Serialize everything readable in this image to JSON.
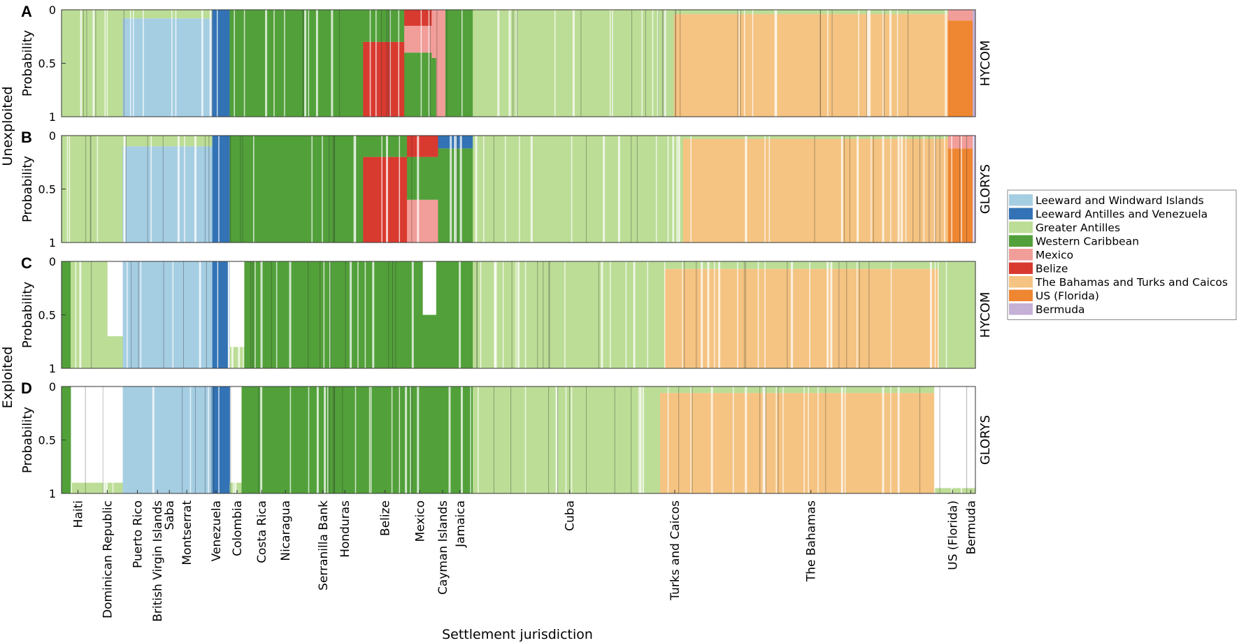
{
  "chart_data": {
    "type": "bar",
    "subtype": "stacked-probability-strips",
    "xlabel": "Settlement jurisdiction",
    "ylabel": "Probability",
    "ylim": [
      0,
      1
    ],
    "yticks": [
      "0",
      "0.5",
      "1"
    ],
    "groups": [
      {
        "label": "Unexploited",
        "panels": [
          "A",
          "B"
        ]
      },
      {
        "label": "Exploited",
        "panels": [
          "C",
          "D"
        ]
      }
    ],
    "panels": [
      {
        "letter": "A",
        "model": "HYCOM",
        "group": "Unexploited"
      },
      {
        "letter": "B",
        "model": "GLORYS",
        "group": "Unexploited"
      },
      {
        "letter": "C",
        "model": "HYCOM",
        "group": "Exploited"
      },
      {
        "letter": "D",
        "model": "GLORYS",
        "group": "Exploited"
      }
    ],
    "legend": [
      {
        "name": "Leeward and Windward Islands",
        "color": "#a6cee3"
      },
      {
        "name": "Leeward Antilles and Venezuela",
        "color": "#3373b5"
      },
      {
        "name": "Greater Antilles",
        "color": "#bcdd96"
      },
      {
        "name": "Western Caribbean",
        "color": "#52a03a"
      },
      {
        "name": "Mexico",
        "color": "#f19d99"
      },
      {
        "name": "Belize",
        "color": "#d93a30"
      },
      {
        "name": "The Bahamas and Turks and Caicos",
        "color": "#f5c382"
      },
      {
        "name": "US (Florida)",
        "color": "#ee8632"
      },
      {
        "name": "Bermuda",
        "color": "#c5b0d6"
      }
    ],
    "jurisdictions": [
      {
        "label": "Haiti",
        "pos": 0.018
      },
      {
        "label": "Dominican Republic",
        "pos": 0.05
      },
      {
        "label": "Puerto Rico",
        "pos": 0.083
      },
      {
        "label": "British Virgin Islands",
        "pos": 0.105
      },
      {
        "label": "Saba",
        "pos": 0.118
      },
      {
        "label": "Montserrat",
        "pos": 0.137
      },
      {
        "label": "Venezuela",
        "pos": 0.169
      },
      {
        "label": "Colombia",
        "pos": 0.192
      },
      {
        "label": "Costa Rica",
        "pos": 0.219
      },
      {
        "label": "Nicaragua",
        "pos": 0.245
      },
      {
        "label": "Serranilla Bank",
        "pos": 0.286
      },
      {
        "label": "Honduras",
        "pos": 0.31
      },
      {
        "label": "Belize",
        "pos": 0.354
      },
      {
        "label": "Mexico",
        "pos": 0.392
      },
      {
        "label": "Cayman Islands",
        "pos": 0.417
      },
      {
        "label": "Jamaica",
        "pos": 0.436
      },
      {
        "label": "Cuba",
        "pos": 0.556
      },
      {
        "label": "Turks and Caicos",
        "pos": 0.671
      },
      {
        "label": "The Bahamas",
        "pos": 0.82
      },
      {
        "label": "US (Florida)",
        "pos": 0.975
      },
      {
        "label": "Bermuda",
        "pos": 0.995
      }
    ],
    "segments": {
      "A": [
        {
          "start": 0.0,
          "end": 0.067,
          "parts": [
            [
              "Greater Antilles",
              1
            ]
          ]
        },
        {
          "start": 0.067,
          "end": 0.165,
          "parts": [
            [
              "Leeward and Windward Islands",
              0.92
            ],
            [
              "Greater Antilles",
              0.08
            ]
          ]
        },
        {
          "start": 0.165,
          "end": 0.184,
          "parts": [
            [
              "Leeward Antilles and Venezuela",
              1
            ]
          ]
        },
        {
          "start": 0.184,
          "end": 0.33,
          "parts": [
            [
              "Western Caribbean",
              1
            ]
          ]
        },
        {
          "start": 0.33,
          "end": 0.375,
          "parts": [
            [
              "Belize",
              0.7
            ],
            [
              "Western Caribbean",
              0.3
            ]
          ]
        },
        {
          "start": 0.375,
          "end": 0.405,
          "parts": [
            [
              "Western Caribbean",
              0.6
            ],
            [
              "Mexico",
              0.25
            ],
            [
              "Belize",
              0.15
            ]
          ]
        },
        {
          "start": 0.405,
          "end": 0.41,
          "parts": [
            [
              "Western Caribbean",
              0.55
            ],
            [
              "Mexico",
              0.45
            ]
          ]
        },
        {
          "start": 0.41,
          "end": 0.42,
          "parts": [
            [
              "Mexico",
              1
            ]
          ]
        },
        {
          "start": 0.42,
          "end": 0.45,
          "parts": [
            [
              "Western Caribbean",
              1
            ]
          ]
        },
        {
          "start": 0.45,
          "end": 0.67,
          "parts": [
            [
              "Greater Antilles",
              1
            ]
          ]
        },
        {
          "start": 0.67,
          "end": 0.97,
          "parts": [
            [
              "The Bahamas and Turks and Caicos",
              0.96
            ],
            [
              "Greater Antilles",
              0.04
            ]
          ]
        },
        {
          "start": 0.97,
          "end": 0.997,
          "parts": [
            [
              "US (Florida)",
              0.9
            ],
            [
              "Mexico",
              0.1
            ]
          ]
        },
        {
          "start": 0.997,
          "end": 1.0,
          "parts": [
            [
              "Bermuda",
              1
            ]
          ]
        }
      ],
      "B": [
        {
          "start": 0.0,
          "end": 0.067,
          "parts": [
            [
              "Greater Antilles",
              1
            ]
          ]
        },
        {
          "start": 0.067,
          "end": 0.165,
          "parts": [
            [
              "Leeward and Windward Islands",
              0.9
            ],
            [
              "Greater Antilles",
              0.1
            ]
          ]
        },
        {
          "start": 0.165,
          "end": 0.184,
          "parts": [
            [
              "Leeward Antilles and Venezuela",
              1
            ]
          ]
        },
        {
          "start": 0.184,
          "end": 0.33,
          "parts": [
            [
              "Western Caribbean",
              1
            ]
          ]
        },
        {
          "start": 0.33,
          "end": 0.378,
          "parts": [
            [
              "Belize",
              0.8
            ],
            [
              "Western Caribbean",
              0.2
            ]
          ]
        },
        {
          "start": 0.378,
          "end": 0.412,
          "parts": [
            [
              "Mexico",
              0.4
            ],
            [
              "Western Caribbean",
              0.4
            ],
            [
              "Belize",
              0.2
            ]
          ]
        },
        {
          "start": 0.412,
          "end": 0.45,
          "parts": [
            [
              "Western Caribbean",
              0.88
            ],
            [
              "Leeward Antilles and Venezuela",
              0.12
            ]
          ]
        },
        {
          "start": 0.45,
          "end": 0.68,
          "parts": [
            [
              "Greater Antilles",
              1
            ]
          ]
        },
        {
          "start": 0.68,
          "end": 0.97,
          "parts": [
            [
              "The Bahamas and Turks and Caicos",
              0.97
            ],
            [
              "Greater Antilles",
              0.03
            ]
          ]
        },
        {
          "start": 0.97,
          "end": 0.997,
          "parts": [
            [
              "US (Florida)",
              0.88
            ],
            [
              "Mexico",
              0.12
            ]
          ]
        },
        {
          "start": 0.997,
          "end": 1.0,
          "parts": [
            [
              "Bermuda",
              1
            ]
          ]
        }
      ],
      "C": [
        {
          "start": 0.0,
          "end": 0.01,
          "parts": [
            [
              "Western Caribbean",
              1
            ]
          ]
        },
        {
          "start": 0.01,
          "end": 0.05,
          "parts": [
            [
              "Greater Antilles",
              1
            ]
          ]
        },
        {
          "start": 0.05,
          "end": 0.067,
          "parts": [
            [
              "Greater Antilles",
              0.3
            ]
          ]
        },
        {
          "start": 0.067,
          "end": 0.165,
          "parts": [
            [
              "Leeward and Windward Islands",
              1
            ]
          ]
        },
        {
          "start": 0.165,
          "end": 0.184,
          "parts": [
            [
              "Leeward Antilles and Venezuela",
              1
            ]
          ]
        },
        {
          "start": 0.184,
          "end": 0.2,
          "parts": [
            [
              "Greater Antilles",
              0.2
            ]
          ]
        },
        {
          "start": 0.2,
          "end": 0.395,
          "parts": [
            [
              "Western Caribbean",
              1
            ]
          ]
        },
        {
          "start": 0.395,
          "end": 0.41,
          "parts": [
            [
              "Western Caribbean",
              0.5
            ]
          ]
        },
        {
          "start": 0.41,
          "end": 0.45,
          "parts": [
            [
              "Western Caribbean",
              1
            ]
          ]
        },
        {
          "start": 0.45,
          "end": 0.66,
          "parts": [
            [
              "Greater Antilles",
              1
            ]
          ]
        },
        {
          "start": 0.66,
          "end": 0.96,
          "parts": [
            [
              "The Bahamas and Turks and Caicos",
              0.93
            ],
            [
              "Greater Antilles",
              0.07
            ]
          ]
        },
        {
          "start": 0.96,
          "end": 1.0,
          "parts": [
            [
              "Greater Antilles",
              1
            ]
          ]
        }
      ],
      "D": [
        {
          "start": 0.0,
          "end": 0.01,
          "parts": [
            [
              "Western Caribbean",
              1
            ]
          ]
        },
        {
          "start": 0.01,
          "end": 0.067,
          "parts": [
            [
              "Greater Antilles",
              0.1
            ]
          ]
        },
        {
          "start": 0.067,
          "end": 0.165,
          "parts": [
            [
              "Leeward and Windward Islands",
              1
            ]
          ]
        },
        {
          "start": 0.165,
          "end": 0.184,
          "parts": [
            [
              "Leeward Antilles and Venezuela",
              1
            ]
          ]
        },
        {
          "start": 0.184,
          "end": 0.197,
          "parts": [
            [
              "Greater Antilles",
              0.1
            ]
          ]
        },
        {
          "start": 0.197,
          "end": 0.41,
          "parts": [
            [
              "Western Caribbean",
              1
            ]
          ]
        },
        {
          "start": 0.41,
          "end": 0.45,
          "parts": [
            [
              "Western Caribbean",
              1
            ]
          ]
        },
        {
          "start": 0.45,
          "end": 0.655,
          "parts": [
            [
              "Greater Antilles",
              1
            ]
          ]
        },
        {
          "start": 0.655,
          "end": 0.955,
          "parts": [
            [
              "The Bahamas and Turks and Caicos",
              0.94
            ],
            [
              "Greater Antilles",
              0.06
            ]
          ]
        },
        {
          "start": 0.955,
          "end": 1.0,
          "parts": [
            [
              "Greater Antilles",
              0.05
            ]
          ]
        }
      ]
    }
  }
}
